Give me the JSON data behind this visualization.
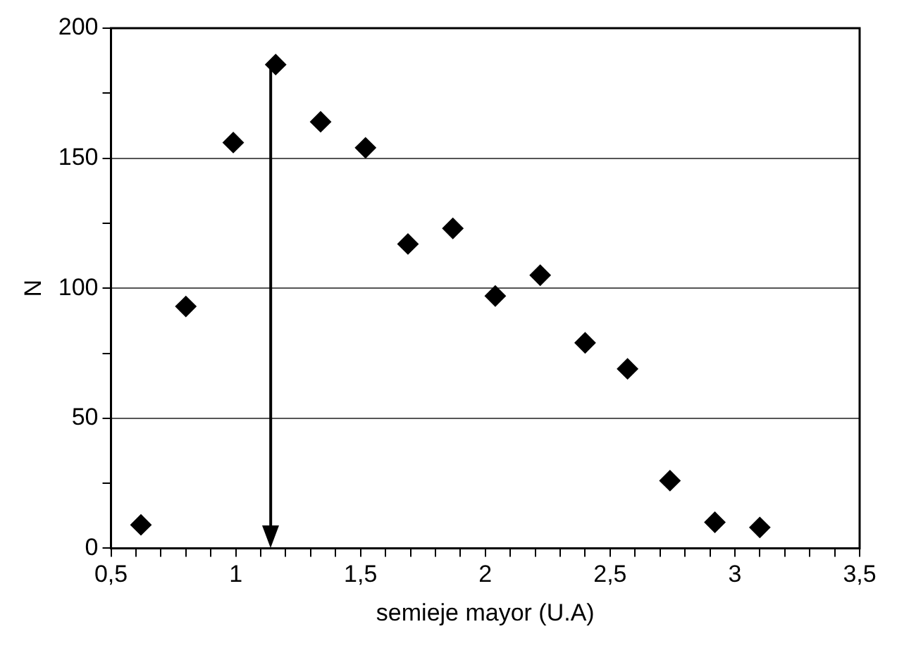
{
  "chart_data": {
    "type": "scatter",
    "xlabel": "semieje mayor (U.A)",
    "ylabel": "N",
    "x": [
      0.62,
      0.8,
      0.99,
      1.16,
      1.34,
      1.52,
      1.69,
      1.87,
      2.04,
      2.22,
      2.4,
      2.57,
      2.74,
      2.92,
      3.1
    ],
    "series": [
      {
        "color": "#000000",
        "values": [
          9,
          93,
          156,
          186,
          164,
          154,
          117,
          123,
          97,
          105,
          79,
          69,
          26,
          10,
          8
        ]
      }
    ],
    "marker": "diamond",
    "legend": false,
    "grid": "y",
    "xlim": [
      0.5,
      3.5
    ],
    "xticks": [
      {
        "value": 0.5,
        "label": "0,5"
      },
      {
        "value": 0.6,
        "label": null
      },
      {
        "value": 0.7,
        "label": null
      },
      {
        "value": 0.8,
        "label": null
      },
      {
        "value": 0.9,
        "label": null
      },
      1,
      {
        "value": 1.1,
        "label": null
      },
      {
        "value": 1.2,
        "label": null
      },
      {
        "value": 1.3,
        "label": null
      },
      {
        "value": 1.4,
        "label": null
      },
      {
        "value": 1.5,
        "label": "1,5"
      },
      {
        "value": 1.6,
        "label": null
      },
      {
        "value": 1.7,
        "label": null
      },
      {
        "value": 1.8,
        "label": null
      },
      {
        "value": 1.9,
        "label": null
      },
      2,
      {
        "value": 2.1,
        "label": null
      },
      {
        "value": 2.2,
        "label": null
      },
      {
        "value": 2.3,
        "label": null
      },
      {
        "value": 2.4,
        "label": null
      },
      {
        "value": 2.5,
        "label": "2,5"
      },
      {
        "value": 2.6,
        "label": null
      },
      {
        "value": 2.7,
        "label": null
      },
      {
        "value": 2.8,
        "label": null
      },
      {
        "value": 2.9,
        "label": null
      },
      3,
      {
        "value": 3.1,
        "label": null
      },
      {
        "value": 3.2,
        "label": null
      },
      {
        "value": 3.3,
        "label": null
      },
      {
        "value": 3.4,
        "label": null
      },
      {
        "value": 3.5,
        "label": "3,5"
      }
    ],
    "ylim": [
      0,
      200
    ],
    "yticks": [
      0,
      {
        "value": 25,
        "label": null
      },
      50,
      {
        "value": 75,
        "label": null
      },
      100,
      {
        "value": 125,
        "label": null
      },
      150,
      {
        "value": 175,
        "label": null
      },
      200
    ],
    "ref_lines": [
      {
        "axis": "x",
        "value": 1.14,
        "color": "#000000",
        "line_style": "solid"
      }
    ]
  }
}
